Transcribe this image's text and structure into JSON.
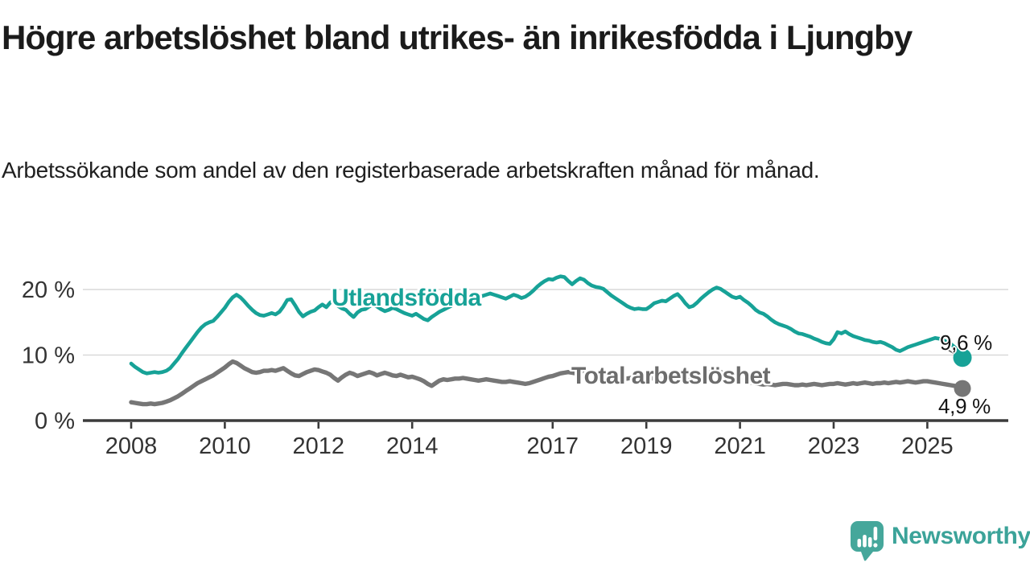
{
  "header": {
    "title": "Högre arbetslöshet bland utrikes- än inrikesfödda i Ljungby",
    "subtitle": "Arbetssökande som andel av den registerbaserade arbetskraften månad för månad."
  },
  "chart_data": {
    "type": "line",
    "title": "Högre arbetslöshet bland utrikes- än inrikesfödda i Ljungby",
    "subtitle": "Arbetssökande som andel av den registerbaserade arbetskraften månad för månad.",
    "unit": "%",
    "x_start": "2008-01",
    "x_end": "2025-10",
    "x_frequency": "monthly",
    "ylim": [
      0,
      23
    ],
    "grid": "horizontal",
    "gridline_color": "#d9d9d9",
    "axis_color": "#3b3b3b",
    "tick_label_color": "#333333",
    "y_ticks": [
      {
        "value": 0,
        "label": "0 %"
      },
      {
        "value": 10,
        "label": "10 %"
      },
      {
        "value": 20,
        "label": "20 %"
      }
    ],
    "x_ticks": [
      {
        "year": 2008,
        "label": "2008"
      },
      {
        "year": 2010,
        "label": "2010"
      },
      {
        "year": 2012,
        "label": "2012"
      },
      {
        "year": 2014,
        "label": "2014"
      },
      {
        "year": 2017,
        "label": "2017"
      },
      {
        "year": 2019,
        "label": "2019"
      },
      {
        "year": 2021,
        "label": "2021"
      },
      {
        "year": 2023,
        "label": "2023"
      },
      {
        "year": 2025,
        "label": "2025"
      }
    ],
    "series": [
      {
        "name": "Utlandsfödda",
        "color": "#17a297",
        "end_label": "9,6 %",
        "end_value": 9.6,
        "values": [
          8.7,
          8.2,
          7.8,
          7.4,
          7.2,
          7.3,
          7.4,
          7.3,
          7.4,
          7.6,
          8.0,
          8.7,
          9.4,
          10.3,
          11.1,
          11.9,
          12.7,
          13.5,
          14.2,
          14.7,
          15.0,
          15.2,
          15.8,
          16.5,
          17.2,
          18.1,
          18.8,
          19.2,
          18.8,
          18.2,
          17.5,
          16.9,
          16.4,
          16.1,
          16.0,
          16.2,
          16.4,
          16.2,
          16.6,
          17.4,
          18.4,
          18.5,
          17.6,
          16.6,
          15.9,
          16.3,
          16.6,
          16.8,
          17.3,
          17.7,
          17.3,
          18.0,
          18.4,
          17.5,
          17.1,
          16.9,
          16.3,
          15.8,
          16.5,
          16.9,
          17.0,
          17.4,
          17.7,
          17.4,
          17.0,
          16.7,
          16.9,
          17.2,
          17.0,
          16.7,
          16.4,
          16.2,
          16.0,
          16.3,
          15.9,
          15.5,
          15.3,
          15.8,
          16.2,
          16.6,
          16.9,
          17.2,
          17.5,
          17.9,
          18.3,
          18.6,
          18.9,
          19.1,
          19.0,
          18.8,
          19.0,
          19.2,
          19.4,
          19.2,
          19.0,
          18.8,
          18.6,
          18.9,
          19.2,
          19.0,
          18.7,
          18.9,
          19.3,
          19.8,
          20.4,
          20.9,
          21.3,
          21.6,
          21.5,
          21.8,
          22.0,
          21.9,
          21.3,
          20.8,
          21.3,
          21.7,
          21.5,
          21.0,
          20.6,
          20.4,
          20.3,
          20.1,
          19.6,
          19.1,
          18.7,
          18.3,
          17.9,
          17.5,
          17.2,
          17.0,
          17.1,
          17.0,
          17.0,
          17.4,
          17.9,
          18.1,
          18.3,
          18.2,
          18.6,
          19.0,
          19.3,
          18.7,
          17.9,
          17.3,
          17.5,
          18.0,
          18.6,
          19.1,
          19.6,
          20.0,
          20.3,
          20.1,
          19.7,
          19.3,
          18.9,
          18.7,
          18.9,
          18.4,
          18.0,
          17.5,
          16.9,
          16.5,
          16.3,
          15.9,
          15.4,
          15.0,
          14.7,
          14.5,
          14.3,
          14.0,
          13.6,
          13.3,
          13.2,
          13.0,
          12.8,
          12.5,
          12.3,
          12.0,
          11.8,
          11.7,
          12.4,
          13.5,
          13.3,
          13.6,
          13.2,
          12.9,
          12.7,
          12.5,
          12.3,
          12.2,
          12.0,
          11.9,
          12.0,
          11.8,
          11.5,
          11.2,
          10.8,
          10.6,
          10.9,
          11.2,
          11.4,
          11.6,
          11.8,
          12.0,
          12.2,
          12.4,
          12.6,
          12.5,
          12.3,
          12.0,
          11.7,
          11.2,
          10.4,
          9.6
        ]
      },
      {
        "name": "Total arbetslöshet",
        "color": "#767676",
        "end_label": "4,9 %",
        "end_value": 4.9,
        "values": [
          2.8,
          2.7,
          2.6,
          2.5,
          2.5,
          2.6,
          2.5,
          2.6,
          2.7,
          2.9,
          3.1,
          3.4,
          3.7,
          4.1,
          4.5,
          4.9,
          5.3,
          5.7,
          6.0,
          6.3,
          6.6,
          6.9,
          7.3,
          7.7,
          8.1,
          8.6,
          9.0,
          8.8,
          8.4,
          8.0,
          7.7,
          7.4,
          7.3,
          7.4,
          7.6,
          7.6,
          7.7,
          7.6,
          7.8,
          8.0,
          7.6,
          7.2,
          6.9,
          6.8,
          7.1,
          7.4,
          7.6,
          7.8,
          7.7,
          7.5,
          7.3,
          7.0,
          6.5,
          6.1,
          6.6,
          7.0,
          7.3,
          7.1,
          6.8,
          7.0,
          7.2,
          7.4,
          7.2,
          6.9,
          7.1,
          7.3,
          7.1,
          6.9,
          6.8,
          7.0,
          6.8,
          6.6,
          6.7,
          6.5,
          6.3,
          6.0,
          5.6,
          5.3,
          5.7,
          6.1,
          6.3,
          6.2,
          6.3,
          6.4,
          6.4,
          6.5,
          6.4,
          6.3,
          6.2,
          6.1,
          6.2,
          6.3,
          6.2,
          6.1,
          6.0,
          5.9,
          5.9,
          6.0,
          5.9,
          5.8,
          5.7,
          5.6,
          5.7,
          5.9,
          6.1,
          6.3,
          6.5,
          6.7,
          6.8,
          7.0,
          7.2,
          7.3,
          7.4,
          7.3,
          7.2,
          7.3,
          7.4,
          7.3,
          7.2,
          7.1,
          7.0,
          6.9,
          6.8,
          6.7,
          6.6,
          6.5,
          6.4,
          6.4,
          6.5,
          6.4,
          6.3,
          6.3,
          6.4,
          6.5,
          6.4,
          6.3,
          6.4,
          6.5,
          6.6,
          6.5,
          6.4,
          6.3,
          6.4,
          6.5,
          6.6,
          6.8,
          7.1,
          7.4,
          7.6,
          7.7,
          7.6,
          7.4,
          7.2,
          7.0,
          6.7,
          6.5,
          6.3,
          6.1,
          5.9,
          5.8,
          5.7,
          5.6,
          5.5,
          5.6,
          5.5,
          5.4,
          5.5,
          5.6,
          5.6,
          5.5,
          5.4,
          5.4,
          5.5,
          5.4,
          5.5,
          5.6,
          5.5,
          5.4,
          5.5,
          5.6,
          5.6,
          5.7,
          5.6,
          5.5,
          5.6,
          5.7,
          5.6,
          5.7,
          5.8,
          5.7,
          5.6,
          5.7,
          5.7,
          5.8,
          5.7,
          5.8,
          5.9,
          5.8,
          5.9,
          6.0,
          5.9,
          5.8,
          5.9,
          6.0,
          6.0,
          5.9,
          5.8,
          5.7,
          5.6,
          5.5,
          5.4,
          5.3,
          5.1,
          4.9
        ]
      }
    ],
    "legend_position": "inline-labels"
  },
  "branding": {
    "name": "Newsworthy",
    "color": "#3ba399",
    "logo": "newsworthy-speech-bubble-chart-icon"
  }
}
